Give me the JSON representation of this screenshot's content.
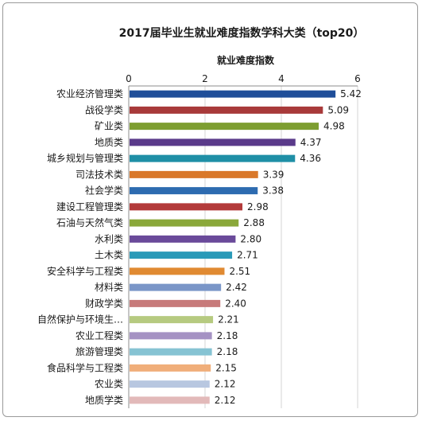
{
  "chart_data": {
    "type": "bar",
    "orientation": "horizontal",
    "title": "2017届毕业生就业难度指数学科大类（top20）",
    "xlabel": "就业难度指数",
    "xlim": [
      0,
      6
    ],
    "xticks": [
      "0",
      "2",
      "4",
      "6"
    ],
    "grid": true,
    "categories": [
      "农业经济管理类",
      "战役学类",
      "矿业类",
      "地质类",
      "城乡规划与管理类",
      "司法技术类",
      "社会学类",
      "建设工程管理类",
      "石油与天然气类",
      "水利类",
      "土木类",
      "安全科学与工程类",
      "材料类",
      "财政学类",
      "自然保护与环境生…",
      "农业工程类",
      "旅游管理类",
      "食品科学与工程类",
      "农业类",
      "地质学类"
    ],
    "values": [
      5.42,
      5.09,
      4.98,
      4.37,
      4.36,
      3.39,
      3.38,
      2.98,
      2.88,
      2.8,
      2.71,
      2.51,
      2.42,
      2.4,
      2.21,
      2.18,
      2.18,
      2.15,
      2.12,
      2.12
    ],
    "value_labels": [
      "5.42",
      "5.09",
      "4.98",
      "4.37",
      "4.36",
      "3.39",
      "3.38",
      "2.98",
      "2.88",
      "2.80",
      "2.71",
      "2.51",
      "2.42",
      "2.40",
      "2.21",
      "2.18",
      "2.18",
      "2.15",
      "2.12",
      "2.12"
    ],
    "colors": [
      "#1f4e99",
      "#a83a3a",
      "#7d9e30",
      "#5a3a8a",
      "#1f8fa6",
      "#d9782a",
      "#2d6bb0",
      "#b33a3a",
      "#8aa83a",
      "#6a4a9a",
      "#2a9ab8",
      "#e08a32",
      "#7a96c8",
      "#c77a7a",
      "#b6ca80",
      "#a592c3",
      "#86c3d3",
      "#f0ae7a",
      "#b8c7e0",
      "#e2b9b9"
    ]
  }
}
